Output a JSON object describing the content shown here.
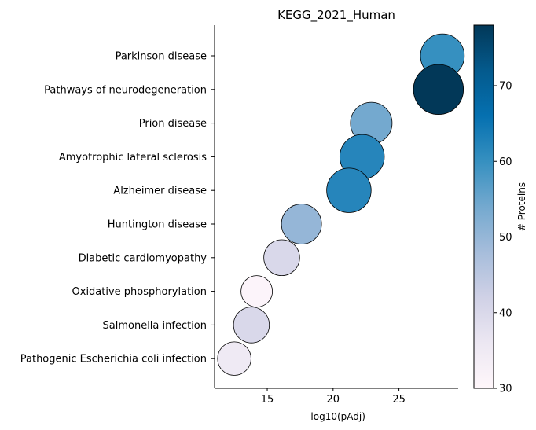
{
  "chart_data": {
    "type": "scatter",
    "title": "KEGG_2021_Human",
    "xlabel": "-log10(pAdj)",
    "ylabel": "",
    "xlim": [
      11,
      29.5
    ],
    "xticks": [
      15,
      20,
      25
    ],
    "colorbar_label": "# Proteins",
    "colorbar_range": [
      30,
      78
    ],
    "colorbar_ticks": [
      30,
      40,
      50,
      60,
      70
    ],
    "colormap": [
      "#fff7fb",
      "#ece7f2",
      "#d0d1e6",
      "#a6bddb",
      "#74a9cf",
      "#3690c0",
      "#0570b0",
      "#045a8d",
      "#023858"
    ],
    "grid": false,
    "categories": [
      "Parkinson disease",
      "Pathways of neurodegeneration",
      "Prion disease",
      "Amyotrophic lateral sclerosis",
      "Alzheimer disease",
      "Huntington disease",
      "Diabetic cardiomyopathy",
      "Oxidative phosphorylation",
      "Salmonella infection",
      "Pathogenic Escherichia coli infection"
    ],
    "points": [
      {
        "term": "Parkinson disease",
        "x": 28.3,
        "proteins": 60
      },
      {
        "term": "Pathways of neurodegeneration",
        "x": 28.0,
        "proteins": 78
      },
      {
        "term": "Prion disease",
        "x": 22.9,
        "proteins": 54
      },
      {
        "term": "Amyotrophic lateral sclerosis",
        "x": 22.2,
        "proteins": 62
      },
      {
        "term": "Alzheimer disease",
        "x": 21.2,
        "proteins": 62
      },
      {
        "term": "Huntington disease",
        "x": 17.6,
        "proteins": 50
      },
      {
        "term": "Diabetic cardiomyopathy",
        "x": 16.1,
        "proteins": 40
      },
      {
        "term": "Oxidative phosphorylation",
        "x": 14.2,
        "proteins": 31
      },
      {
        "term": "Salmonella infection",
        "x": 13.8,
        "proteins": 40
      },
      {
        "term": "Pathogenic Escherichia coli infection",
        "x": 12.5,
        "proteins": 35
      }
    ]
  }
}
